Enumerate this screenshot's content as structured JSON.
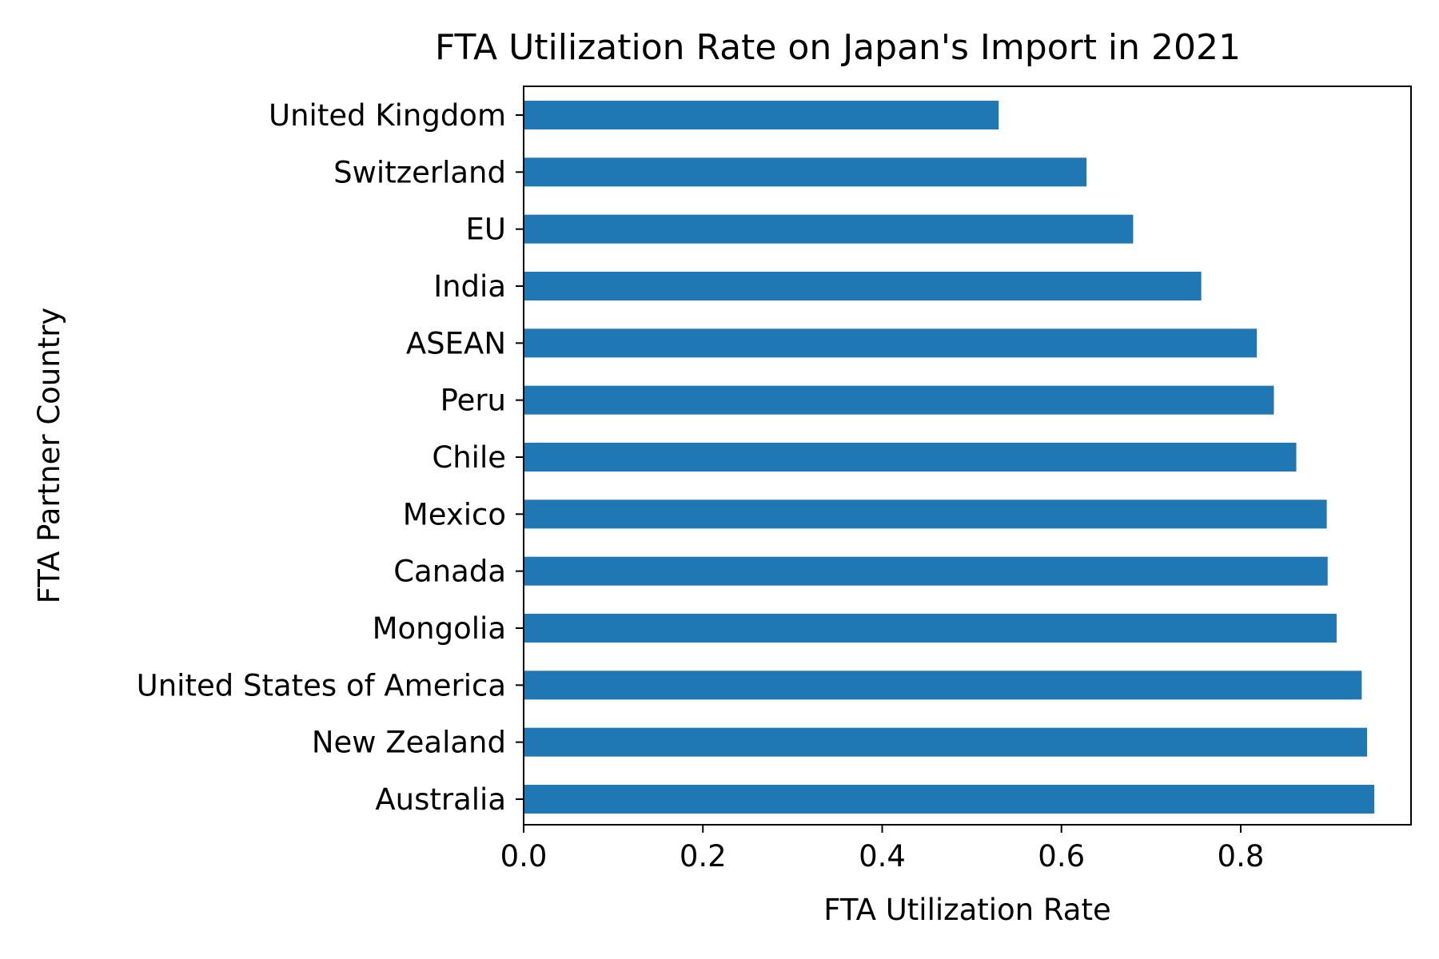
{
  "chart_data": {
    "type": "bar",
    "orientation": "horizontal",
    "title": "FTA Utilization Rate on Japan's Import in 2021",
    "xlabel": "FTA Utilization Rate",
    "ylabel": "FTA Partner Country",
    "xlim": [
      0,
      0.99
    ],
    "xticks": [
      "0.0",
      "0.2",
      "0.4",
      "0.6",
      "0.8"
    ],
    "xtick_values": [
      0,
      0.2,
      0.4,
      0.6,
      0.8
    ],
    "grid": false,
    "bar_color": "#1f77b4",
    "categories": [
      "United Kingdom",
      "Switzerland",
      "EU",
      "India",
      "ASEAN",
      "Peru",
      "Chile",
      "Mexico",
      "Canada",
      "Mongolia",
      "United States of America",
      "New Zealand",
      "Australia"
    ],
    "values": [
      0.53,
      0.628,
      0.68,
      0.756,
      0.818,
      0.837,
      0.862,
      0.896,
      0.897,
      0.907,
      0.935,
      0.941,
      0.949
    ]
  }
}
